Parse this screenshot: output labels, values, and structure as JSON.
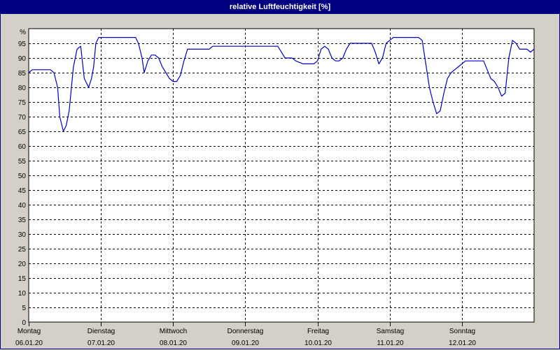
{
  "chart_data": {
    "type": "line",
    "title": "relative Luftfeuchtigkeit [%]",
    "ylabel_unit": "%",
    "ylim": [
      0,
      100
    ],
    "yticks": [
      0,
      5,
      10,
      15,
      20,
      25,
      30,
      35,
      40,
      45,
      50,
      55,
      60,
      65,
      70,
      75,
      80,
      85,
      90,
      95
    ],
    "xlim_days": [
      0,
      7
    ],
    "grid": true,
    "days": [
      {
        "name": "Montag",
        "date": "06.01.20"
      },
      {
        "name": "Dienstag",
        "date": "07.01.20"
      },
      {
        "name": "Mittwoch",
        "date": "08.01.20"
      },
      {
        "name": "Donnerstag",
        "date": "09.01.20"
      },
      {
        "name": "Freitag",
        "date": "10.01.20"
      },
      {
        "name": "Samstag",
        "date": "11.01.20"
      },
      {
        "name": "Sonntag",
        "date": "12.01.20"
      }
    ],
    "series": [
      {
        "color": "#0000cc",
        "x": [
          0.0,
          0.05,
          0.1,
          0.2,
          0.3,
          0.35,
          0.4,
          0.43,
          0.48,
          0.52,
          0.56,
          0.62,
          0.67,
          0.72,
          0.77,
          0.83,
          0.87,
          0.9,
          0.93,
          0.97,
          1.0,
          1.03,
          1.06,
          1.1,
          1.15,
          1.2,
          1.3,
          1.4,
          1.48,
          1.52,
          1.57,
          1.6,
          1.65,
          1.7,
          1.75,
          1.8,
          1.85,
          1.9,
          1.95,
          2.0,
          2.05,
          2.1,
          2.15,
          2.2,
          2.25,
          2.3,
          2.4,
          2.5,
          2.55,
          2.6,
          2.8,
          3.0,
          3.2,
          3.3,
          3.4,
          3.45,
          3.5,
          3.55,
          3.6,
          3.65,
          3.7,
          3.8,
          3.9,
          3.95,
          4.0,
          4.05,
          4.1,
          4.15,
          4.2,
          4.25,
          4.3,
          4.35,
          4.4,
          4.45,
          4.5,
          4.55,
          4.6,
          4.65,
          4.7,
          4.75,
          4.8,
          4.85,
          4.9,
          4.95,
          5.0,
          5.05,
          5.15,
          5.3,
          5.4,
          5.45,
          5.5,
          5.55,
          5.6,
          5.65,
          5.7,
          5.75,
          5.8,
          5.85,
          5.9,
          5.95,
          6.0,
          6.05,
          6.1,
          6.15,
          6.2,
          6.25,
          6.3,
          6.35,
          6.4,
          6.45,
          6.5,
          6.55,
          6.6,
          6.65,
          6.7,
          6.75,
          6.8,
          6.85,
          6.9,
          6.95,
          7.0
        ],
        "values": [
          85,
          86,
          86,
          86,
          86,
          85,
          80,
          70,
          65,
          67,
          72,
          87,
          93,
          94,
          83,
          80,
          83,
          87,
          95,
          97,
          97,
          97,
          97,
          97,
          97,
          97,
          97,
          97,
          97,
          95,
          90,
          85,
          89,
          91,
          91,
          90,
          87,
          85,
          83,
          82,
          82,
          84,
          89,
          93,
          93,
          93,
          93,
          93,
          94,
          94,
          94,
          94,
          94,
          94,
          94,
          94,
          92,
          90,
          90,
          90,
          89,
          88,
          88,
          88,
          89,
          93,
          94,
          93,
          90,
          89,
          89,
          90,
          93,
          95,
          95,
          95,
          95,
          95,
          95,
          95,
          92,
          88,
          90,
          95,
          96,
          97,
          97,
          97,
          97,
          96,
          88,
          80,
          75,
          71,
          72,
          78,
          83,
          85,
          86,
          87,
          88,
          89,
          89,
          89,
          89,
          89,
          89,
          86,
          83,
          82,
          80,
          77,
          78,
          90,
          96,
          95,
          93,
          93,
          93,
          92,
          93
        ]
      }
    ]
  }
}
